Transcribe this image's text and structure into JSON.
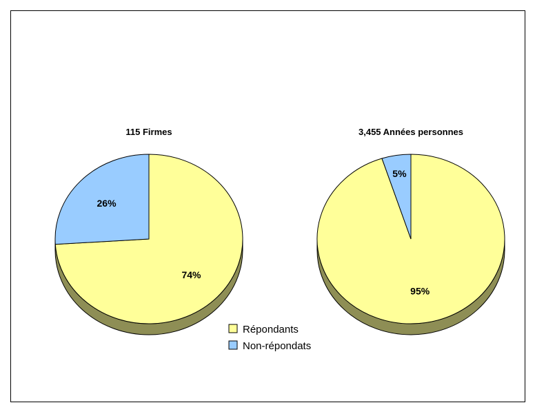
{
  "chart_data": [
    {
      "type": "pie",
      "title": "115 Firmes",
      "slices": [
        {
          "name": "Répondants",
          "value": 74,
          "label": "74%"
        },
        {
          "name": "Non-répondats",
          "value": 26,
          "label": "26%"
        }
      ]
    },
    {
      "type": "pie",
      "title": "3,455 Années personnes",
      "slices": [
        {
          "name": "Répondants",
          "value": 95,
          "label": "95%"
        },
        {
          "name": "Non-répondats",
          "value": 5,
          "label": "5%"
        }
      ]
    }
  ],
  "legend": {
    "position": "bottom-center",
    "items": [
      {
        "name": "Répondants",
        "color": "#FFFF99"
      },
      {
        "name": "Non-répondats",
        "color": "#99CCFF"
      }
    ]
  },
  "colors": {
    "respondents": "#FFFF99",
    "non_respondents": "#99CCFF",
    "pie_side": "#8E8E55",
    "frame": "#000000"
  }
}
